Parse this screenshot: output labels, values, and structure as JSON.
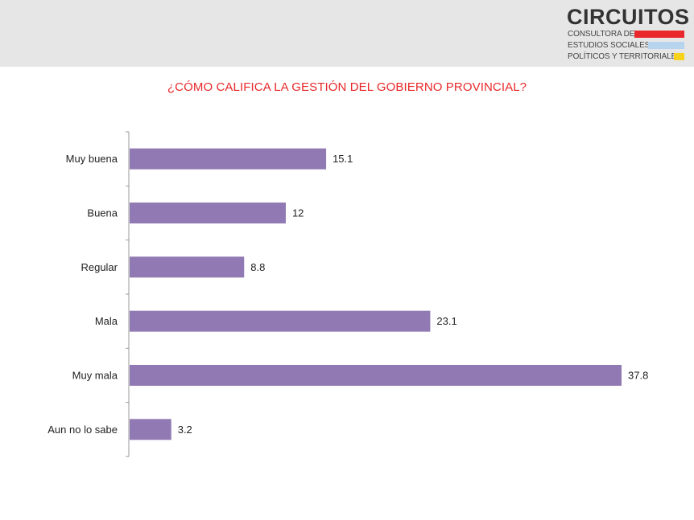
{
  "logo": {
    "title": "CIRCUITOS",
    "line1": "CONSULTORA DE",
    "line2": "ESTUDIOS SOCIALES,",
    "line3": "POLÍTICOS Y TERRITORIALES",
    "colors": {
      "red": "#e8282a",
      "blue": "#b7d4ee",
      "yellow": "#f6d21c"
    }
  },
  "chart_data": {
    "type": "bar",
    "orientation": "horizontal",
    "title": "¿CÓMO CALIFICA LA GESTIÓN DEL GOBIERNO PROVINCIAL?",
    "categories": [
      "Muy buena",
      "Buena",
      "Regular",
      "Mala",
      "Muy mala",
      "Aun no lo sabe"
    ],
    "values": [
      15.1,
      12,
      8.8,
      23.1,
      37.8,
      3.2
    ],
    "value_labels": [
      "15.1",
      "12",
      "8.8",
      "23.1",
      "37.8",
      "3.2"
    ],
    "xlim": [
      0,
      38
    ],
    "grid": false,
    "bar_color": "#9179b3",
    "title_color": "#e8282a"
  }
}
